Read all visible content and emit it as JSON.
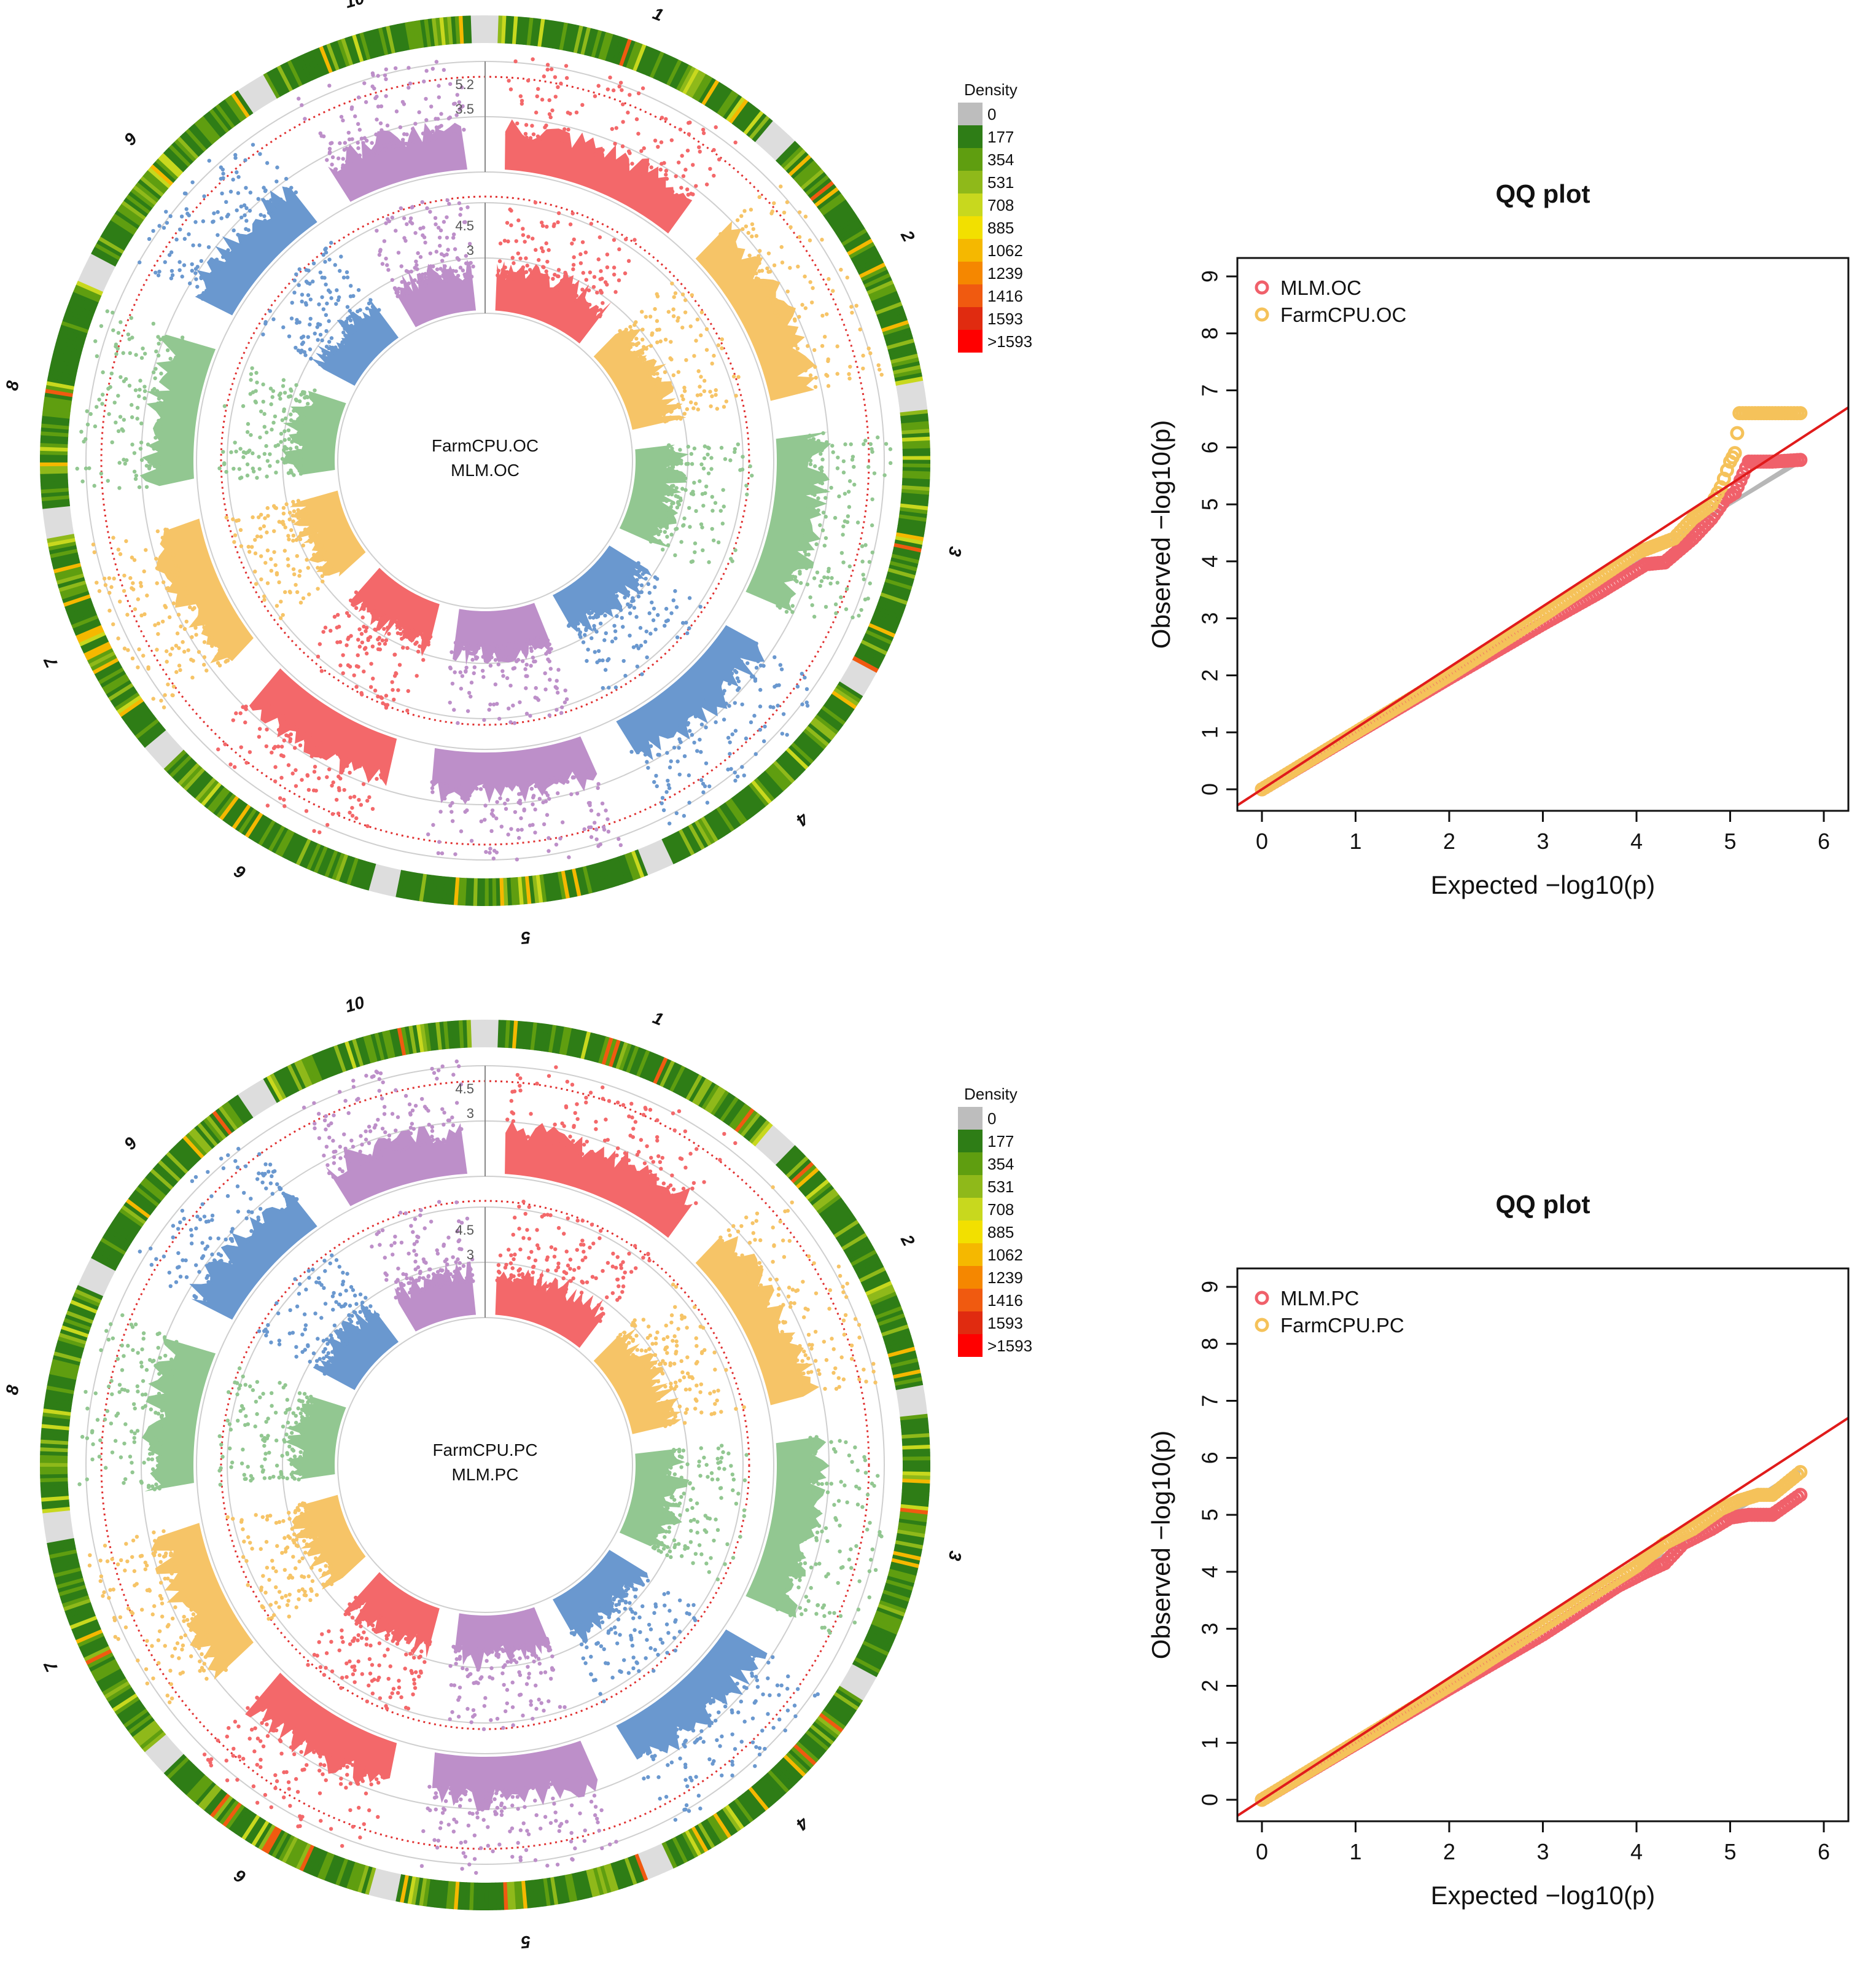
{
  "chart_data": [
    {
      "type": "circular-manhattan",
      "panel": "top",
      "center_labels": [
        "FarmCPU.OC",
        "MLM.OC"
      ],
      "chromosomes": [
        "1",
        "2",
        "3",
        "4",
        "5",
        "6",
        "7",
        "8",
        "9",
        "10"
      ],
      "ring_labels": {
        "outer": [
          "5.2",
          "3.5"
        ],
        "inner": [
          "4.5",
          "3"
        ]
      },
      "density_legend": {
        "title": "Density",
        "labels": [
          "0",
          "177",
          "354",
          "531",
          "708",
          "885",
          "1062",
          "1239",
          "1416",
          "1593",
          ">1593"
        ]
      }
    },
    {
      "type": "scatter",
      "panel": "top",
      "title": "QQ plot",
      "xlabel": "Expected  −log10(p)",
      "ylabel": "Observed  −log10(p)",
      "xlim": [
        0,
        6
      ],
      "ylim": [
        0,
        9
      ],
      "xticks": [
        "0",
        "1",
        "2",
        "3",
        "4",
        "5",
        "6"
      ],
      "yticks": [
        "0",
        "1",
        "2",
        "3",
        "4",
        "5",
        "6",
        "7",
        "8",
        "9"
      ],
      "series": [
        {
          "name": "MLM.OC",
          "color": "#f0606a",
          "points": [
            [
              0,
              0
            ],
            [
              1,
              0.98
            ],
            [
              2,
              1.95
            ],
            [
              3,
              2.9
            ],
            [
              3.6,
              3.45
            ],
            [
              4.0,
              3.85
            ],
            [
              4.1,
              3.95
            ],
            [
              4.3,
              3.98
            ],
            [
              4.6,
              4.4
            ],
            [
              4.8,
              4.75
            ],
            [
              4.95,
              5.1
            ],
            [
              5.05,
              5.2
            ],
            [
              5.2,
              5.75
            ],
            [
              5.45,
              5.75
            ],
            [
              5.75,
              5.78
            ]
          ]
        },
        {
          "name": "FarmCPU.OC",
          "color": "#f5c25a",
          "points": [
            [
              0,
              0
            ],
            [
              1,
              1.0
            ],
            [
              2,
              2.0
            ],
            [
              3,
              3.05
            ],
            [
              4,
              4.15
            ],
            [
              4.4,
              4.4
            ],
            [
              4.6,
              4.75
            ],
            [
              4.8,
              5.0
            ],
            [
              4.9,
              5.3
            ],
            [
              5.0,
              5.75
            ],
            [
              5.05,
              5.9
            ],
            [
              5.1,
              6.6
            ],
            [
              5.3,
              6.6
            ],
            [
              5.45,
              6.6
            ],
            [
              5.75,
              6.6
            ]
          ]
        }
      ]
    },
    {
      "type": "circular-manhattan",
      "panel": "bottom",
      "center_labels": [
        "FarmCPU.PC",
        "MLM.PC"
      ],
      "chromosomes": [
        "1",
        "2",
        "3",
        "4",
        "5",
        "6",
        "7",
        "8",
        "9",
        "10"
      ],
      "ring_labels": {
        "outer": [
          "4.5",
          "3"
        ],
        "inner": [
          "4.5",
          "3"
        ]
      },
      "density_legend": {
        "title": "Density",
        "labels": [
          "0",
          "177",
          "354",
          "531",
          "708",
          "885",
          "1062",
          "1239",
          "1416",
          "1593",
          ">1593"
        ]
      }
    },
    {
      "type": "scatter",
      "panel": "bottom",
      "title": "QQ plot",
      "xlabel": "Expected  −log10(p)",
      "ylabel": "Observed  −log10(p)",
      "xlim": [
        0,
        6
      ],
      "ylim": [
        0,
        9
      ],
      "xticks": [
        "0",
        "1",
        "2",
        "3",
        "4",
        "5",
        "6"
      ],
      "yticks": [
        "0",
        "1",
        "2",
        "3",
        "4",
        "5",
        "6",
        "7",
        "8",
        "9"
      ],
      "series": [
        {
          "name": "MLM.PC",
          "color": "#f0606a",
          "points": [
            [
              0,
              0
            ],
            [
              1,
              0.98
            ],
            [
              2,
              1.95
            ],
            [
              3,
              2.9
            ],
            [
              3.8,
              3.75
            ],
            [
              4.1,
              4.0
            ],
            [
              4.3,
              4.15
            ],
            [
              4.5,
              4.5
            ],
            [
              4.8,
              4.75
            ],
            [
              5.0,
              4.95
            ],
            [
              5.2,
              5.0
            ],
            [
              5.45,
              5.0
            ],
            [
              5.75,
              5.35
            ]
          ]
        },
        {
          "name": "FarmCPU.PC",
          "color": "#f5c25a",
          "points": [
            [
              0,
              0
            ],
            [
              1,
              1.0
            ],
            [
              2,
              2.0
            ],
            [
              3,
              3.05
            ],
            [
              4,
              4.1
            ],
            [
              4.3,
              4.5
            ],
            [
              4.6,
              4.75
            ],
            [
              4.9,
              5.1
            ],
            [
              5.1,
              5.25
            ],
            [
              5.3,
              5.35
            ],
            [
              5.45,
              5.35
            ],
            [
              5.75,
              5.75
            ]
          ]
        }
      ]
    }
  ]
}
